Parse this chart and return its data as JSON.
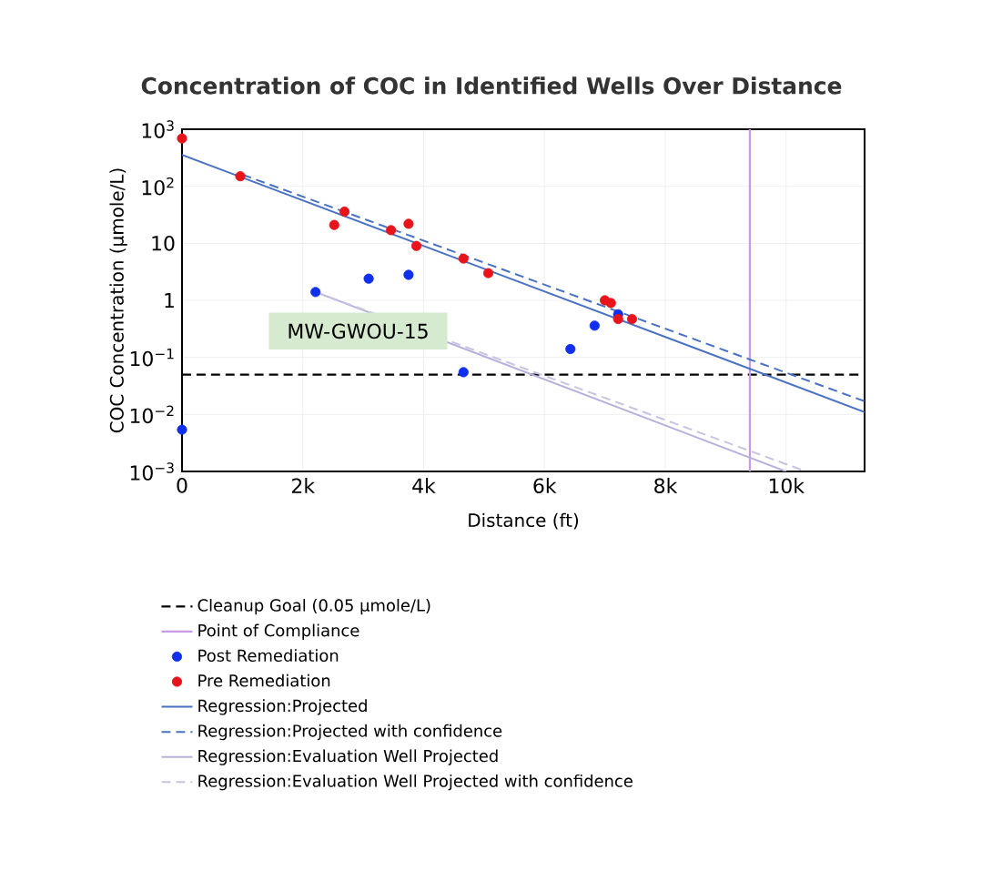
{
  "chart_data": {
    "type": "scatter",
    "title": "Concentration of COC in Identified Wells Over Distance",
    "xlabel": "Distance (ft)",
    "ylabel": "COC Concentration (µmole/L)",
    "xlim": [
      0,
      11300
    ],
    "ylim": [
      0.001,
      1000
    ],
    "log": "y",
    "grid": true,
    "legend": "bottom",
    "xticks": [
      0,
      {
        "value": 2000,
        "label": "2k"
      },
      {
        "value": 4000,
        "label": "4k"
      },
      {
        "value": 6000,
        "label": "6k"
      },
      {
        "value": 8000,
        "label": "8k"
      },
      {
        "value": 10000,
        "label": "10k"
      }
    ],
    "yticks": [
      {
        "value": 0.001,
        "label": "10$^{−3}$"
      },
      {
        "value": 0.01,
        "label": "10$^{−2}$"
      },
      {
        "value": 0.1,
        "label": "10$^{−1}$"
      },
      1,
      10,
      {
        "value": 100,
        "label": "10$^{2}$"
      },
      {
        "value": 1000,
        "label": "10$^{3}$"
      }
    ],
    "ref_lines": [
      {
        "axis": "y",
        "value": 0.05,
        "label": "Cleanup Goal (0.05 µmole/L)",
        "color": "#000000",
        "line_style": "dashed"
      },
      {
        "axis": "x",
        "value": 9400,
        "label": "Point of Compliance",
        "color": "#c89ae8",
        "line_style": "solid"
      }
    ],
    "annotations": [
      "MW-GWOU-15"
    ],
    "series": [
      {
        "name": "Post Remediation",
        "marker": "circle",
        "color": "#1030ee",
        "x": [
          0,
          2210,
          3090,
          3750,
          4660,
          6430,
          6830,
          7220
        ],
        "values": [
          0.0054,
          1.4,
          2.4,
          2.8,
          0.055,
          0.14,
          0.36,
          0.57
        ]
      },
      {
        "name": "Pre Remediation",
        "marker": "circle",
        "color": "#e8141c",
        "x": [
          0,
          965,
          2520,
          2690,
          3460,
          3750,
          3880,
          4660,
          5070,
          7000,
          7100,
          7220,
          7450
        ],
        "values": [
          690,
          150,
          21,
          36,
          17,
          22,
          9,
          5.4,
          3,
          1,
          0.9,
          0.47,
          0.47
        ]
      },
      {
        "name": "Regression:Projected",
        "type": "line",
        "marker": "none",
        "line_style": "solid",
        "color": "#4a72c4",
        "x": [
          0,
          11300
        ],
        "values": [
          355,
          0.011
        ]
      },
      {
        "name": "Regression:Projected with confidence",
        "type": "line",
        "marker": "none",
        "line_style": "dashed",
        "color": "#4a72c4",
        "x": [
          1000,
          11300
        ],
        "values": [
          160,
          0.017
        ]
      },
      {
        "name": "Regression:Evaluation Well Projected",
        "type": "line",
        "marker": "none",
        "line_style": "solid",
        "color": "#b8b0dc",
        "x": [
          2210,
          10000
        ],
        "values": [
          1.4,
          0.001
        ]
      },
      {
        "name": "Regression:Evaluation Well Projected with confidence",
        "type": "line",
        "marker": "none",
        "line_style": "dashed",
        "color": "#c8c4e0",
        "x": [
          2210,
          10330
        ],
        "values": [
          1.4,
          0.001
        ]
      }
    ]
  }
}
